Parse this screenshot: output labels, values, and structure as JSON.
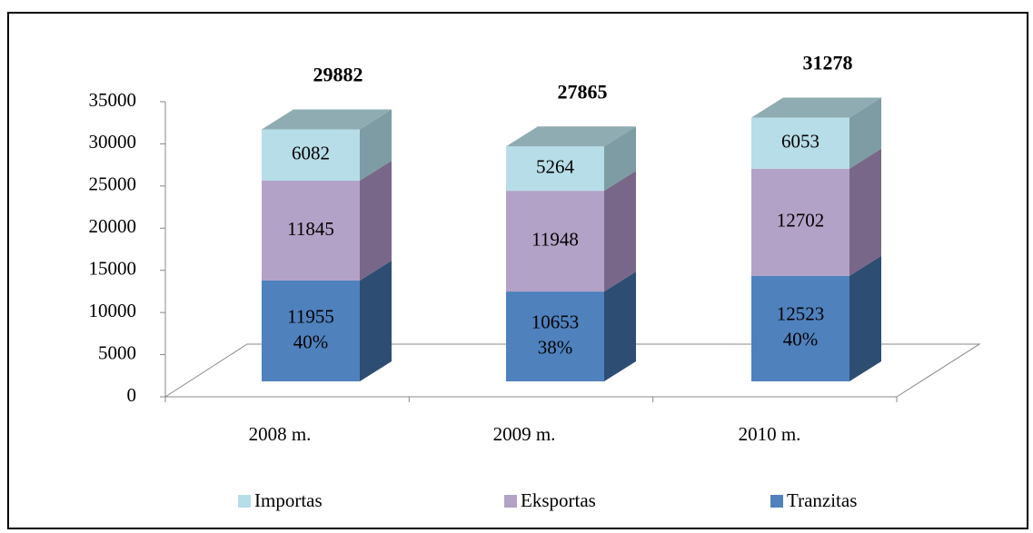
{
  "chart_data": {
    "type": "bar3d_stacked",
    "categories": [
      "2008 m.",
      "2009 m.",
      "2010 m."
    ],
    "series": [
      {
        "name": "Tranzitas",
        "color": "#4f81bd",
        "side_color": "#2e4d73",
        "values": [
          11955,
          10653,
          12523
        ],
        "share_labels": [
          "40%",
          "38%",
          "40%"
        ]
      },
      {
        "name": "Eksportas",
        "color": "#b3a2c7",
        "side_color": "#786788",
        "values": [
          11845,
          11948,
          12702
        ]
      },
      {
        "name": "Importas",
        "color": "#b7dde8",
        "side_color": "#7d9ca3",
        "top_color": "#8facb2",
        "values": [
          6082,
          5264,
          6053
        ]
      }
    ],
    "totals": [
      29882,
      27865,
      31278
    ],
    "ylim": [
      0,
      35000
    ],
    "yticks": [
      0,
      5000,
      10000,
      15000,
      20000,
      25000,
      30000,
      35000
    ],
    "legend": "bottom"
  }
}
